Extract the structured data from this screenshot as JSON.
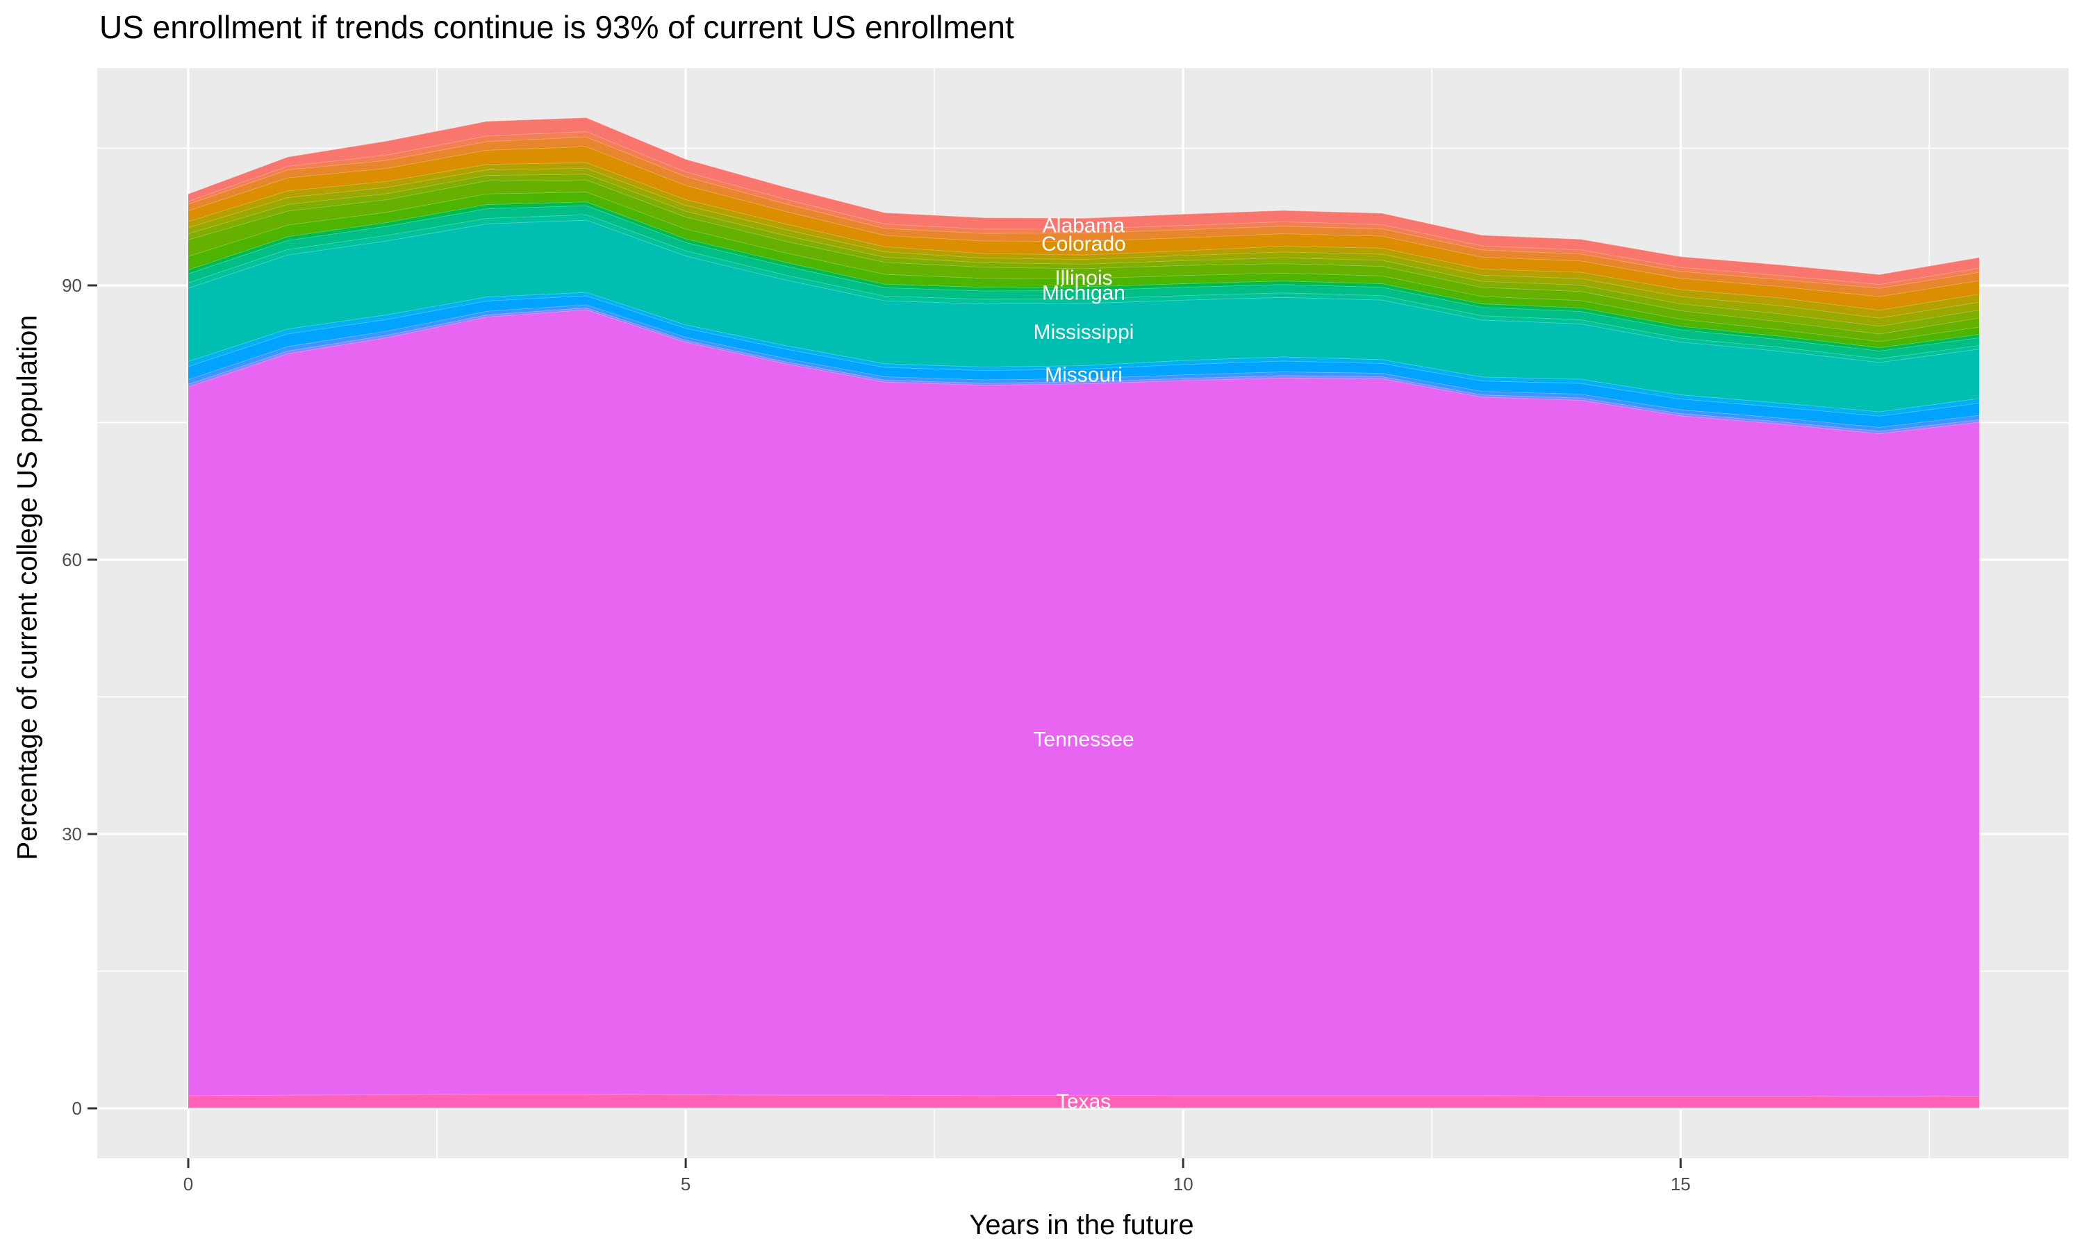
{
  "page": {
    "background": "#FFFFFF"
  },
  "chart_data": {
    "type": "area",
    "stacked": true,
    "title": "US enrollment if trends continue is 93% of current US enrollment",
    "xlabel": "Years in the future",
    "ylabel": "Percentage of current college US population",
    "x": [
      0,
      1,
      2,
      3,
      4,
      5,
      6,
      7,
      8,
      9,
      10,
      11,
      12,
      13,
      14,
      15,
      16,
      17,
      18
    ],
    "totals": [
      100.0,
      104.1,
      105.8,
      108.0,
      108.4,
      103.9,
      100.8,
      97.9,
      97.4,
      97.3,
      97.8,
      98.2,
      97.9,
      95.5,
      95.1,
      93.2,
      92.3,
      91.2,
      93.1
    ],
    "x_axis": {
      "ticks": [
        "0",
        "5",
        "10",
        "15"
      ],
      "tick_values": [
        0,
        5,
        10,
        15
      ],
      "minor_values": [
        2.5,
        7.5,
        12.5,
        17.5
      ],
      "lim": [
        -0.9,
        18.9
      ]
    },
    "y_axis": {
      "ticks": [
        "0",
        "30",
        "60",
        "90"
      ],
      "tick_values": [
        0,
        30,
        60,
        90
      ],
      "minor_values": [
        15,
        45,
        75,
        105
      ],
      "lim": [
        -5.4,
        113.8
      ]
    },
    "label_x_year": 9,
    "legend": "none",
    "series": [
      {
        "name": "other_states_below_texas",
        "label": "",
        "values": [
          0.1,
          0.1,
          0.1,
          0.1,
          0.1,
          0.1,
          0.1,
          0.1,
          0.1,
          0.1,
          0.1,
          0.1,
          0.1,
          0.1,
          0.1,
          0.1,
          0.1,
          0.1,
          0.1
        ],
        "stripes": [
          {
            "color": "#CE7AF8",
            "frac": 1.0
          }
        ]
      },
      {
        "name": "Texas",
        "label": "Texas",
        "values": [
          1.3,
          1.35,
          1.4,
          1.45,
          1.45,
          1.4,
          1.35,
          1.35,
          1.3,
          1.35,
          1.3,
          1.3,
          1.3,
          1.3,
          1.25,
          1.25,
          1.25,
          1.2,
          1.25
        ],
        "stripes": [
          {
            "color": "#FF61B8",
            "frac": 1.0
          }
        ]
      },
      {
        "name": "Tennessee",
        "label": "Tennessee",
        "values": [
          77.5,
          81.1,
          82.8,
          85.0,
          85.8,
          82.3,
          80.0,
          78.0,
          77.7,
          77.8,
          78.2,
          78.5,
          78.4,
          76.4,
          76.1,
          74.4,
          73.5,
          72.5,
          73.7
        ],
        "stripes": [
          {
            "color": "#E765F0",
            "frac": 1.0
          }
        ]
      },
      {
        "name": "Missouri_group",
        "label": "Missouri",
        "values": [
          2.8,
          2.7,
          2.5,
          2.2,
          1.9,
          1.9,
          2.0,
          2.0,
          2.0,
          2.0,
          2.2,
          2.3,
          2.1,
          2.2,
          2.3,
          2.3,
          2.3,
          2.4,
          2.6
        ],
        "stripes": [
          {
            "color": "#7F8CFF",
            "frac": 0.11
          },
          {
            "color": "#3D95FF",
            "frac": 0.18
          },
          {
            "color": "#00A3FF",
            "frac": 0.51
          },
          {
            "color": "#00B3F0",
            "frac": 0.2
          }
        ]
      },
      {
        "name": "Mississippi_group",
        "label": "Mississippi",
        "values": [
          8.6,
          8.7,
          8.7,
          8.6,
          8.5,
          8.1,
          7.7,
          7.4,
          7.4,
          7.3,
          7.1,
          7.0,
          7.0,
          6.7,
          6.5,
          6.2,
          6.1,
          5.8,
          5.8
        ],
        "stripes": [
          {
            "color": "#00BFB1",
            "frac": 0.93
          },
          {
            "color": "#00C29B",
            "frac": 0.07
          }
        ]
      },
      {
        "name": "Michigan_group",
        "label": "Michigan",
        "values": [
          1.4,
          1.4,
          1.4,
          1.5,
          1.4,
          1.3,
          1.4,
          1.3,
          1.3,
          1.3,
          1.3,
          1.3,
          1.3,
          1.3,
          1.3,
          1.3,
          1.2,
          1.2,
          1.2
        ],
        "stripes": [
          {
            "color": "#00BE85",
            "frac": 0.7
          },
          {
            "color": "#00BB4E",
            "frac": 0.3
          }
        ]
      },
      {
        "name": "Illinois_group",
        "label": "Illinois",
        "values": [
          3.3,
          2.8,
          2.5,
          2.6,
          2.4,
          2.4,
          2.3,
          2.4,
          2.2,
          2.0,
          2.0,
          1.9,
          1.9,
          1.8,
          1.8,
          1.7,
          1.6,
          1.5,
          1.8
        ],
        "stripes": [
          {
            "color": "#4DB400",
            "frac": 0.45
          },
          {
            "color": "#66B000",
            "frac": 0.55
          }
        ]
      },
      {
        "name": "other_states_olive_band",
        "label": "",
        "values": [
          2.0,
          2.2,
          2.0,
          1.8,
          1.9,
          1.9,
          1.9,
          1.7,
          1.5,
          1.5,
          1.6,
          1.9,
          2.0,
          2.0,
          2.1,
          2.3,
          2.6,
          2.6,
          2.6
        ],
        "stripes": [
          {
            "color": "#7FAD00",
            "frac": 0.33
          },
          {
            "color": "#9AA800",
            "frac": 0.34
          },
          {
            "color": "#B5A000",
            "frac": 0.33
          }
        ]
      },
      {
        "name": "Colorado_group",
        "label": "Colorado",
        "values": [
          1.9,
          2.3,
          2.3,
          2.5,
          2.8,
          2.5,
          2.2,
          2.0,
          2.2,
          2.4,
          2.3,
          2.2,
          2.1,
          2.1,
          2.0,
          2.0,
          2.0,
          2.4,
          2.4
        ],
        "stripes": [
          {
            "color": "#DB8E00",
            "frac": 0.62
          },
          {
            "color": "#E8862E",
            "frac": 0.38
          }
        ]
      },
      {
        "name": "Alabama_group",
        "label": "Alabama",
        "values": [
          1.1,
          1.4,
          2.1,
          2.2,
          2.1,
          1.9,
          1.8,
          1.7,
          1.7,
          1.6,
          1.7,
          1.7,
          1.7,
          1.6,
          1.6,
          1.6,
          1.6,
          1.5,
          1.6
        ],
        "stripes": [
          {
            "color": "#F47F55",
            "frac": 0.28
          },
          {
            "color": "#F8766D",
            "frac": 0.72
          }
        ]
      }
    ],
    "colors": {
      "panel": "#EBEBEB",
      "grid": "#FFFFFF",
      "tick_mark": "#333333",
      "axis_text": "#4D4D4D",
      "title_text": "#000000",
      "state_label_text": "#FFFFFF"
    }
  }
}
